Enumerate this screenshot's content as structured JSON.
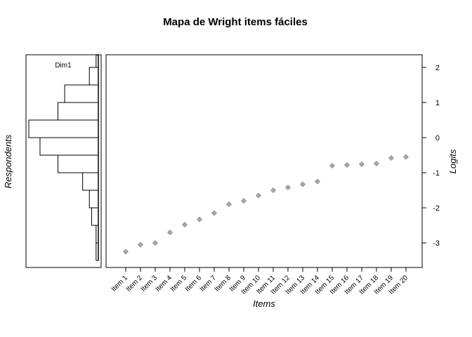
{
  "chart_data": {
    "type": "scatter",
    "title": "Mapa de Wright items fáciles",
    "xlabel": "Items",
    "ylabel_left": "Respondents",
    "ylabel_right": "Logits",
    "ylim": [
      -3.65,
      2.35
    ],
    "yticks": [
      2,
      1,
      0,
      -1,
      -2,
      -3
    ],
    "grid": false,
    "marker_color": "#a6a6a6",
    "categories": [
      "Item 1",
      "Item 2",
      "Item 3",
      "Item 4",
      "Item 5",
      "Item 6",
      "Item 7",
      "Item 8",
      "Item 9",
      "Item 10",
      "Item 11",
      "Item 12",
      "Item 13",
      "Item 14",
      "Item 15",
      "Item 16",
      "Item 17",
      "Item 18",
      "Item 19",
      "Item 20"
    ],
    "values": [
      -3.25,
      -3.05,
      -3.0,
      -2.7,
      -2.48,
      -2.33,
      -2.15,
      -1.9,
      -1.8,
      -1.65,
      -1.5,
      -1.42,
      -1.33,
      -1.25,
      -0.8,
      -0.78,
      -0.76,
      -0.74,
      -0.58,
      -0.55
    ],
    "histogram": {
      "label": "Dim1",
      "bins": [
        {
          "from": 2.0,
          "to": 2.35,
          "count": 1
        },
        {
          "from": 1.5,
          "to": 2.0,
          "count": 4
        },
        {
          "from": 1.0,
          "to": 1.5,
          "count": 15
        },
        {
          "from": 0.5,
          "to": 1.0,
          "count": 18
        },
        {
          "from": 0.0,
          "to": 0.5,
          "count": 31
        },
        {
          "from": -0.5,
          "to": 0.0,
          "count": 26
        },
        {
          "from": -1.0,
          "to": -0.5,
          "count": 18
        },
        {
          "from": -1.5,
          "to": -1.0,
          "count": 7
        },
        {
          "from": -2.0,
          "to": -1.5,
          "count": 4
        },
        {
          "from": -2.5,
          "to": -2.0,
          "count": 3
        },
        {
          "from": -3.0,
          "to": -2.5,
          "count": 1
        },
        {
          "from": -3.5,
          "to": -3.0,
          "count": 1
        }
      ]
    }
  }
}
